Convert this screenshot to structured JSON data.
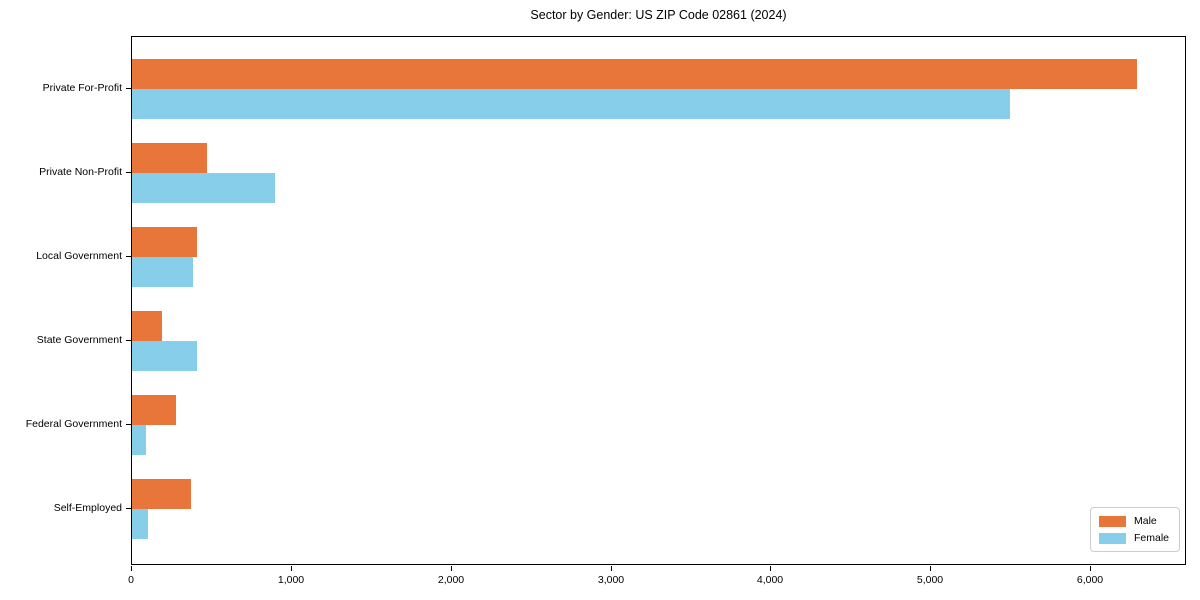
{
  "title": "Sector by Gender: US ZIP Code 02861 (2024)",
  "colors": {
    "male": "#E8763B",
    "female": "#87CEEB",
    "spine": "#000000",
    "background": "#ffffff",
    "legend_border": "#cccccc"
  },
  "chart_data": {
    "type": "bar",
    "orientation": "horizontal",
    "title": "Sector by Gender: US ZIP Code 02861 (2024)",
    "xlabel": "",
    "ylabel": "",
    "grid": false,
    "categories": [
      "Private For-Profit",
      "Private Non-Profit",
      "Local Government",
      "State Government",
      "Federal Government",
      "Self-Employed"
    ],
    "series": [
      {
        "name": "Male",
        "color": "#E8763B",
        "values": [
          6290,
          470,
          405,
          190,
          275,
          370
        ]
      },
      {
        "name": "Female",
        "color": "#87CEEB",
        "values": [
          5490,
          895,
          380,
          405,
          90,
          100
        ]
      }
    ],
    "xlim": [
      0,
      6600
    ],
    "xticks": [
      0,
      1000,
      2000,
      3000,
      4000,
      5000,
      6000
    ],
    "xtick_labels": [
      "0",
      "1,000",
      "2,000",
      "3,000",
      "4,000",
      "5,000",
      "6,000"
    ],
    "legend": {
      "location": "lower right",
      "entries": [
        "Male",
        "Female"
      ]
    }
  }
}
